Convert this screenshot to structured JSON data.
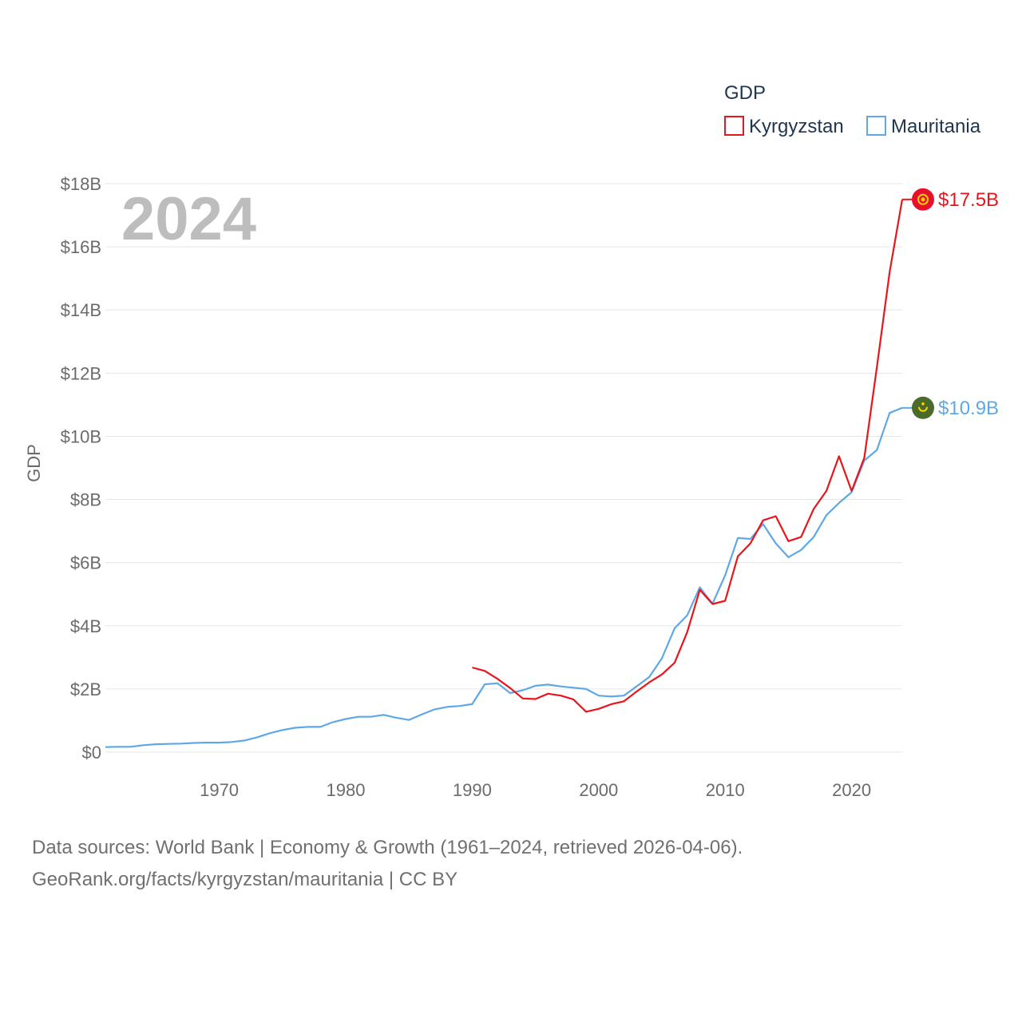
{
  "legend": {
    "title": "GDP",
    "items": [
      {
        "label": "Kyrgyzstan",
        "color": "#e8161b"
      },
      {
        "label": "Mauritania",
        "color": "#5fa8e6"
      }
    ]
  },
  "chart_data": {
    "type": "line",
    "title": "",
    "ylabel": "GDP",
    "xlabel": "",
    "year_watermark": "2024",
    "ylim": [
      0,
      18
    ],
    "xlim": [
      1961,
      2024
    ],
    "y_ticks": [
      {
        "value": 0,
        "label": "$0"
      },
      {
        "value": 2,
        "label": "$2B"
      },
      {
        "value": 4,
        "label": "$4B"
      },
      {
        "value": 6,
        "label": "$6B"
      },
      {
        "value": 8,
        "label": "$8B"
      },
      {
        "value": 10,
        "label": "$10B"
      },
      {
        "value": 12,
        "label": "$12B"
      },
      {
        "value": 14,
        "label": "$14B"
      },
      {
        "value": 16,
        "label": "$16B"
      },
      {
        "value": 18,
        "label": "$18B"
      }
    ],
    "x_ticks": [
      {
        "value": 1970,
        "label": "1970"
      },
      {
        "value": 1980,
        "label": "1980"
      },
      {
        "value": 1990,
        "label": "1990"
      },
      {
        "value": 2000,
        "label": "2000"
      },
      {
        "value": 2010,
        "label": "2010"
      },
      {
        "value": 2020,
        "label": "2020"
      }
    ],
    "series": [
      {
        "name": "Kyrgyzstan",
        "color": "#e8161b",
        "end_label": "$17.5B",
        "flag_icon": "kyrgyzstan-flag-icon",
        "x": [
          1990,
          1991,
          1992,
          1993,
          1994,
          1995,
          1996,
          1997,
          1998,
          1999,
          2000,
          2001,
          2002,
          2003,
          2004,
          2005,
          2006,
          2007,
          2008,
          2009,
          2010,
          2011,
          2012,
          2013,
          2014,
          2015,
          2016,
          2017,
          2018,
          2019,
          2020,
          2021,
          2022,
          2023,
          2024
        ],
        "values": [
          2.68,
          2.57,
          2.32,
          2.03,
          1.7,
          1.68,
          1.85,
          1.79,
          1.67,
          1.28,
          1.37,
          1.52,
          1.61,
          1.92,
          2.21,
          2.46,
          2.83,
          3.8,
          5.14,
          4.69,
          4.79,
          6.2,
          6.61,
          7.34,
          7.47,
          6.68,
          6.81,
          7.7,
          8.27,
          9.37,
          8.27,
          9.32,
          12.2,
          15.2,
          17.5
        ]
      },
      {
        "name": "Mauritania",
        "color": "#5fa8e6",
        "end_label": "$10.9B",
        "flag_icon": "mauritania-flag-icon",
        "x": [
          1961,
          1962,
          1963,
          1964,
          1965,
          1966,
          1967,
          1968,
          1969,
          1970,
          1971,
          1972,
          1973,
          1974,
          1975,
          1976,
          1977,
          1978,
          1979,
          1980,
          1981,
          1982,
          1983,
          1984,
          1985,
          1986,
          1987,
          1988,
          1989,
          1990,
          1991,
          1992,
          1993,
          1994,
          1995,
          1996,
          1997,
          1998,
          1999,
          2000,
          2001,
          2002,
          2003,
          2004,
          2005,
          2006,
          2007,
          2008,
          2009,
          2010,
          2011,
          2012,
          2013,
          2014,
          2015,
          2016,
          2017,
          2018,
          2019,
          2020,
          2021,
          2022,
          2023,
          2024
        ],
        "values": [
          0.16,
          0.17,
          0.17,
          0.22,
          0.25,
          0.26,
          0.27,
          0.29,
          0.3,
          0.3,
          0.32,
          0.37,
          0.47,
          0.6,
          0.7,
          0.77,
          0.8,
          0.8,
          0.95,
          1.05,
          1.12,
          1.12,
          1.18,
          1.09,
          1.02,
          1.19,
          1.35,
          1.43,
          1.46,
          1.52,
          2.15,
          2.18,
          1.87,
          1.96,
          2.1,
          2.14,
          2.08,
          2.04,
          2.0,
          1.79,
          1.76,
          1.79,
          2.08,
          2.38,
          2.97,
          3.92,
          4.33,
          5.22,
          4.7,
          5.6,
          6.78,
          6.75,
          7.22,
          6.61,
          6.17,
          6.4,
          6.81,
          7.5,
          7.89,
          8.23,
          9.23,
          9.57,
          10.74,
          10.9
        ]
      }
    ]
  },
  "footer": {
    "line1": "Data sources: World Bank | Economy & Growth (1961–2024, retrieved 2026-04-06).",
    "line2": "GeoRank.org/facts/kyrgyzstan/mauritania | CC BY"
  }
}
